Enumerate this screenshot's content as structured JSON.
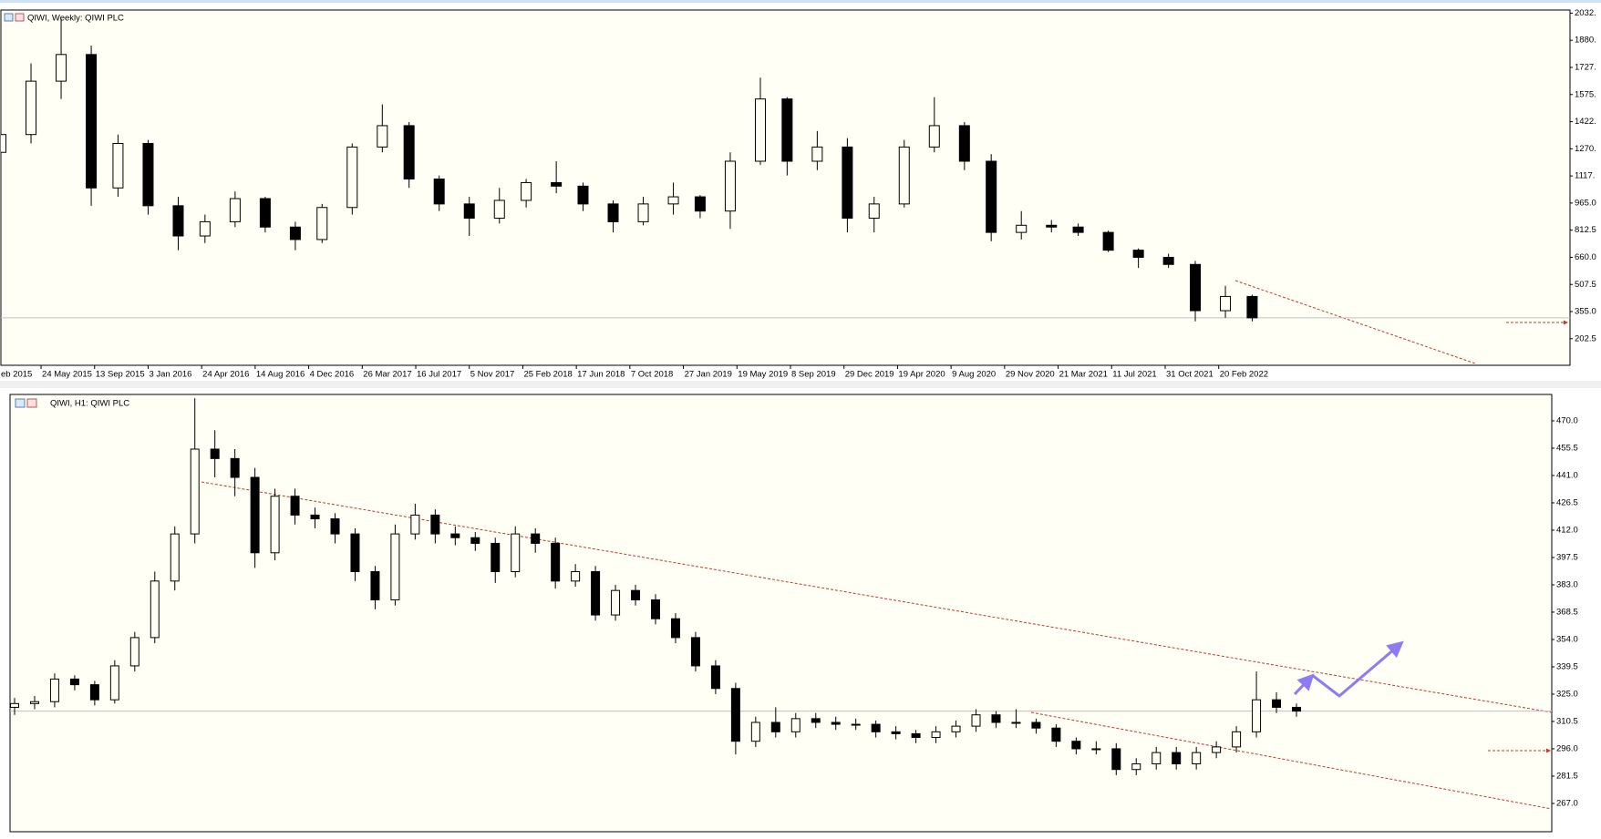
{
  "chart_data": [
    {
      "type": "candlestick",
      "title": "QIWI, Weekly: QIWI PLC",
      "x": [
        "2015-03-01",
        "2015-05-03",
        "2015-07-05",
        "2015-09-06",
        "2015-11-01",
        "2016-01-03",
        "2016-03-06",
        "2016-05-01",
        "2016-07-03",
        "2016-09-04",
        "2016-11-06",
        "2017-01-01",
        "2017-03-05",
        "2017-05-07",
        "2017-07-02",
        "2017-09-03",
        "2017-11-05",
        "2018-01-07",
        "2018-03-04",
        "2018-05-06",
        "2018-07-01",
        "2018-09-02",
        "2018-11-04",
        "2019-01-06",
        "2019-03-03",
        "2019-05-05",
        "2019-07-07",
        "2019-09-01",
        "2019-11-03",
        "2020-01-05",
        "2020-03-01",
        "2020-05-03",
        "2020-07-05",
        "2020-09-06",
        "2020-11-01",
        "2021-01-03",
        "2021-03-07",
        "2021-05-02",
        "2021-07-04",
        "2021-09-05",
        "2021-11-07",
        "2022-01-02",
        "2022-03-06",
        "2022-05-01"
      ],
      "candles": [
        [
          1250,
          1400,
          1200,
          1350
        ],
        [
          1350,
          1750,
          1300,
          1650
        ],
        [
          1650,
          2000,
          1550,
          1800
        ],
        [
          1800,
          1850,
          950,
          1050
        ],
        [
          1050,
          1350,
          1000,
          1300
        ],
        [
          1300,
          1320,
          900,
          950
        ],
        [
          950,
          1000,
          700,
          780
        ],
        [
          780,
          900,
          740,
          860
        ],
        [
          860,
          1030,
          830,
          990
        ],
        [
          990,
          1000,
          800,
          830
        ],
        [
          830,
          860,
          700,
          760
        ],
        [
          760,
          960,
          740,
          940
        ],
        [
          940,
          1300,
          900,
          1280
        ],
        [
          1280,
          1520,
          1250,
          1400
        ],
        [
          1400,
          1420,
          1050,
          1100
        ],
        [
          1100,
          1120,
          920,
          960
        ],
        [
          960,
          1000,
          780,
          880
        ],
        [
          880,
          1050,
          850,
          980
        ],
        [
          980,
          1100,
          940,
          1080
        ],
        [
          1080,
          1200,
          1020,
          1060
        ],
        [
          1060,
          1080,
          920,
          960
        ],
        [
          960,
          980,
          800,
          860
        ],
        [
          860,
          1000,
          840,
          960
        ],
        [
          960,
          1080,
          900,
          1000
        ],
        [
          1000,
          1010,
          880,
          920
        ],
        [
          920,
          1250,
          820,
          1200
        ],
        [
          1200,
          1670,
          1180,
          1550
        ],
        [
          1550,
          1560,
          1120,
          1200
        ],
        [
          1200,
          1370,
          1150,
          1280
        ],
        [
          1280,
          1330,
          800,
          880
        ],
        [
          880,
          1000,
          800,
          960
        ],
        [
          960,
          1320,
          940,
          1280
        ],
        [
          1280,
          1560,
          1250,
          1400
        ],
        [
          1400,
          1420,
          1150,
          1200
        ],
        [
          1200,
          1240,
          750,
          800
        ],
        [
          800,
          920,
          760,
          840
        ],
        [
          840,
          870,
          800,
          830
        ],
        [
          830,
          850,
          780,
          800
        ],
        [
          800,
          810,
          690,
          700
        ],
        [
          700,
          710,
          600,
          660
        ],
        [
          660,
          680,
          600,
          620
        ],
        [
          620,
          640,
          300,
          360
        ],
        [
          360,
          500,
          320,
          440
        ],
        [
          440,
          450,
          300,
          320
        ]
      ],
      "xlim": [
        "2015-03-01",
        "2024-02-25"
      ],
      "xticks": [
        {
          "value": "2015-02-01",
          "label": "eb 2015"
        },
        {
          "value": "2015-05-24",
          "label": "24 May 2015"
        },
        {
          "value": "2015-09-13",
          "label": "13 Sep 2015"
        },
        {
          "value": "2016-01-03",
          "label": "3 Jan 2016"
        },
        {
          "value": "2016-04-24",
          "label": "24 Apr 2016"
        },
        {
          "value": "2016-08-14",
          "label": "14 Aug 2016"
        },
        {
          "value": "2016-12-04",
          "label": "4 Dec 2016"
        },
        {
          "value": "2017-03-26",
          "label": "26 Mar 2017"
        },
        {
          "value": "2017-07-16",
          "label": "16 Jul 2017"
        },
        {
          "value": "2017-11-05",
          "label": "5 Nov 2017"
        },
        {
          "value": "2018-02-25",
          "label": "25 Feb 2018"
        },
        {
          "value": "2018-06-17",
          "label": "17 Jun 2018"
        },
        {
          "value": "2018-10-07",
          "label": "7 Oct 2018"
        },
        {
          "value": "2019-01-27",
          "label": "27 Jan 2019"
        },
        {
          "value": "2019-05-19",
          "label": "19 May 2019"
        },
        {
          "value": "2019-09-08",
          "label": "8 Sep 2019"
        },
        {
          "value": "2019-12-29",
          "label": "29 Dec 2019"
        },
        {
          "value": "2020-04-19",
          "label": "19 Apr 2020"
        },
        {
          "value": "2020-08-09",
          "label": "9 Aug 2020"
        },
        {
          "value": "2020-11-29",
          "label": "29 Nov 2020"
        },
        {
          "value": "2021-03-21",
          "label": "21 Mar 2021"
        },
        {
          "value": "2021-07-11",
          "label": "11 Jul 2021"
        },
        {
          "value": "2021-10-31",
          "label": "31 Oct 2021"
        },
        {
          "value": "2022-02-20",
          "label": "20 Feb 2022"
        }
      ],
      "ylim": [
        53,
        2050
      ],
      "yticks": [
        {
          "value": 2032.5,
          "label": "2032."
        },
        {
          "value": 1880,
          "label": "1880."
        },
        {
          "value": 1727.5,
          "label": "1727."
        },
        {
          "value": 1575,
          "label": "1575."
        },
        {
          "value": 1422.5,
          "label": "1422."
        },
        {
          "value": 1270,
          "label": "1270."
        },
        {
          "value": 1117.5,
          "label": "1117."
        },
        {
          "value": 965,
          "label": "965.0"
        },
        {
          "value": 812.5,
          "label": "812.5"
        },
        {
          "value": 660,
          "label": "660.0"
        },
        {
          "value": 507.5,
          "label": "507.5"
        },
        {
          "value": 355,
          "label": "355.0"
        },
        {
          "value": 202.5,
          "label": "202.5"
        }
      ]
    },
    {
      "type": "candlestick",
      "title": "QIWI, H1: QIWI PLC",
      "candles": [
        [
          318,
          323,
          314,
          320
        ],
        [
          320,
          324,
          317,
          321
        ],
        [
          321,
          336,
          318,
          333
        ],
        [
          333,
          335,
          327,
          330
        ],
        [
          330,
          332,
          319,
          322
        ],
        [
          322,
          343,
          320,
          340
        ],
        [
          340,
          358,
          337,
          355
        ],
        [
          355,
          390,
          352,
          385
        ],
        [
          385,
          414,
          380,
          410
        ],
        [
          410,
          482,
          405,
          455
        ],
        [
          455,
          465,
          440,
          450
        ],
        [
          450,
          455,
          430,
          440
        ],
        [
          440,
          445,
          392,
          400
        ],
        [
          400,
          434,
          396,
          430
        ],
        [
          430,
          434,
          415,
          420
        ],
        [
          420,
          424,
          413,
          418
        ],
        [
          418,
          421,
          405,
          410
        ],
        [
          410,
          413,
          385,
          390
        ],
        [
          390,
          393,
          370,
          375
        ],
        [
          375,
          415,
          372,
          410
        ],
        [
          410,
          426,
          407,
          420
        ],
        [
          420,
          423,
          405,
          410
        ],
        [
          410,
          414,
          404,
          408
        ],
        [
          408,
          411,
          401,
          405
        ],
        [
          405,
          408,
          384,
          390
        ],
        [
          390,
          414,
          387,
          410
        ],
        [
          410,
          413,
          400,
          405
        ],
        [
          405,
          408,
          381,
          385
        ],
        [
          385,
          394,
          382,
          390
        ],
        [
          390,
          393,
          364,
          367
        ],
        [
          367,
          383,
          364,
          380
        ],
        [
          380,
          383,
          372,
          375
        ],
        [
          375,
          378,
          362,
          365
        ],
        [
          365,
          368,
          352,
          355
        ],
        [
          355,
          358,
          337,
          340
        ],
        [
          340,
          343,
          325,
          328
        ],
        [
          328,
          331,
          293,
          300
        ],
        [
          300,
          313,
          297,
          310
        ],
        [
          310,
          318,
          302,
          305
        ],
        [
          305,
          315,
          302,
          312
        ],
        [
          312,
          315,
          307,
          310
        ],
        [
          310,
          313,
          306,
          309
        ],
        [
          309,
          312,
          306,
          309
        ],
        [
          309,
          311,
          302,
          305
        ],
        [
          305,
          308,
          301,
          304
        ],
        [
          304,
          306,
          299,
          302
        ],
        [
          302,
          308,
          299,
          305
        ],
        [
          305,
          311,
          302,
          308
        ],
        [
          308,
          317,
          305,
          314
        ],
        [
          314,
          316,
          307,
          310
        ],
        [
          310,
          317,
          307,
          310
        ],
        [
          310,
          312,
          304,
          307
        ],
        [
          307,
          309,
          297,
          300
        ],
        [
          300,
          302,
          293,
          296
        ],
        [
          296,
          300,
          293,
          296
        ],
        [
          296,
          299,
          282,
          285
        ],
        [
          285,
          291,
          282,
          288
        ],
        [
          288,
          297,
          285,
          294
        ],
        [
          294,
          297,
          285,
          288
        ],
        [
          288,
          297,
          285,
          294
        ],
        [
          294,
          300,
          291,
          297
        ],
        [
          297,
          308,
          294,
          305
        ],
        [
          305,
          337,
          302,
          322
        ],
        [
          322,
          326,
          315,
          318
        ],
        [
          318,
          320,
          313,
          316
        ]
      ],
      "ylim": [
        252,
        484
      ],
      "yticks": [
        {
          "value": 470,
          "label": "470.0"
        },
        {
          "value": 455.5,
          "label": "455.5"
        },
        {
          "value": 441,
          "label": "441.0"
        },
        {
          "value": 426.5,
          "label": "426.5"
        },
        {
          "value": 412,
          "label": "412.0"
        },
        {
          "value": 397.5,
          "label": "397.5"
        },
        {
          "value": 383,
          "label": "383.0"
        },
        {
          "value": 368.5,
          "label": "368.5"
        },
        {
          "value": 354,
          "label": "354.0"
        },
        {
          "value": 339.5,
          "label": "339.5"
        },
        {
          "value": 325,
          "label": "325.0"
        },
        {
          "value": 310.5,
          "label": "310.5"
        },
        {
          "value": 296,
          "label": "296.0"
        },
        {
          "value": 281.5,
          "label": "281.5"
        },
        {
          "value": 267,
          "label": "267.0"
        }
      ]
    }
  ]
}
